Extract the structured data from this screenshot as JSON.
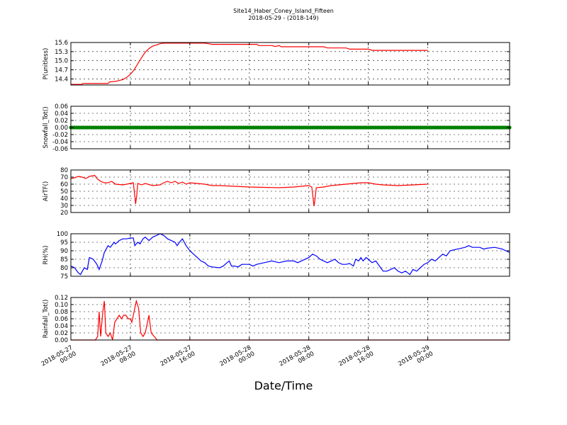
{
  "title_line1": "Site14_Haber_Coney_Island_Fifteen",
  "title_line2": "2018-05-29 - (2018-149)",
  "xlabel": "Date/Time",
  "x_ticks": [
    {
      "t": 0,
      "line1": "2018-05-27",
      "line2": "00:00"
    },
    {
      "t": 8,
      "line1": "2018-05-27",
      "line2": "08:00"
    },
    {
      "t": 16,
      "line1": "2018-05-27",
      "line2": "16:00"
    },
    {
      "t": 24,
      "line1": "2018-05-28",
      "line2": "00:00"
    },
    {
      "t": 32,
      "line1": "2018-05-28",
      "line2": "08:00"
    },
    {
      "t": 40,
      "line1": "2018-05-28",
      "line2": "16:00"
    },
    {
      "t": 48,
      "line1": "2018-05-29",
      "line2": "00:00"
    }
  ],
  "chart_data": [
    {
      "type": "line",
      "id": "pressure",
      "ylabel": "P(unitless)",
      "color": "#ff0000",
      "ylim": [
        14.2,
        15.6
      ],
      "yticks": [
        14.4,
        14.7,
        15.0,
        15.3,
        15.6
      ],
      "decimals": 1,
      "grid": true,
      "points": [
        [
          0,
          14.22
        ],
        [
          1.5,
          14.22
        ],
        [
          1.6,
          14.25
        ],
        [
          5,
          14.25
        ],
        [
          5.2,
          14.3
        ],
        [
          6,
          14.32
        ],
        [
          7,
          14.38
        ],
        [
          7.5,
          14.45
        ],
        [
          8,
          14.55
        ],
        [
          8.5,
          14.7
        ],
        [
          9,
          14.9
        ],
        [
          9.5,
          15.1
        ],
        [
          10,
          15.28
        ],
        [
          10.5,
          15.4
        ],
        [
          11,
          15.48
        ],
        [
          11.5,
          15.52
        ],
        [
          12,
          15.56
        ],
        [
          12.5,
          15.58
        ],
        [
          18,
          15.58
        ],
        [
          18.5,
          15.56
        ],
        [
          19,
          15.54
        ],
        [
          25,
          15.54
        ],
        [
          25.3,
          15.5
        ],
        [
          27,
          15.5
        ],
        [
          27.5,
          15.47
        ],
        [
          28,
          15.5
        ],
        [
          28.3,
          15.46
        ],
        [
          34,
          15.46
        ],
        [
          34.5,
          15.42
        ],
        [
          37,
          15.42
        ],
        [
          37.5,
          15.38
        ],
        [
          40,
          15.38
        ],
        [
          40.5,
          15.34
        ],
        [
          48,
          15.34
        ]
      ]
    },
    {
      "type": "scatter",
      "id": "snowfall",
      "ylabel": "Snowfall_Tot()",
      "color": "#008000",
      "ylim": [
        -0.06,
        0.06
      ],
      "yticks": [
        -0.06,
        -0.04,
        -0.02,
        0.0,
        0.02,
        0.04,
        0.06
      ],
      "decimals": 2,
      "grid": true,
      "constant_value": 0.0,
      "x_step": 0.25
    },
    {
      "type": "line",
      "id": "airtemp",
      "ylabel": "AirTF()",
      "color": "#ff0000",
      "ylim": [
        20,
        80
      ],
      "yticks": [
        20,
        30,
        40,
        50,
        60,
        70,
        80
      ],
      "decimals": 0,
      "grid": true,
      "points": [
        [
          0,
          68
        ],
        [
          0.5,
          69
        ],
        [
          1,
          71
        ],
        [
          1.5,
          70
        ],
        [
          2,
          68
        ],
        [
          2.5,
          71
        ],
        [
          3,
          72
        ],
        [
          3.2,
          72.5
        ],
        [
          3.5,
          68
        ],
        [
          4,
          64
        ],
        [
          4.5,
          62
        ],
        [
          5,
          62
        ],
        [
          5.5,
          64
        ],
        [
          6,
          60
        ],
        [
          7,
          59
        ],
        [
          7.5,
          60
        ],
        [
          8,
          61
        ],
        [
          8.4,
          62
        ],
        [
          8.6,
          43
        ],
        [
          8.7,
          32
        ],
        [
          8.85,
          43
        ],
        [
          9,
          61
        ],
        [
          9.5,
          59
        ],
        [
          10,
          61
        ],
        [
          11,
          58
        ],
        [
          12,
          59
        ],
        [
          12.5,
          62
        ],
        [
          13,
          64
        ],
        [
          13.5,
          62
        ],
        [
          14,
          64
        ],
        [
          14.5,
          61
        ],
        [
          15,
          63
        ],
        [
          15.5,
          60
        ],
        [
          16,
          62
        ],
        [
          17,
          61
        ],
        [
          18,
          60
        ],
        [
          19,
          58
        ],
        [
          20,
          58
        ],
        [
          22,
          57
        ],
        [
          24,
          56
        ],
        [
          28,
          55
        ],
        [
          30,
          56
        ],
        [
          31,
          57
        ],
        [
          32,
          58
        ],
        [
          32.4,
          56
        ],
        [
          32.6,
          38
        ],
        [
          32.7,
          29
        ],
        [
          32.85,
          40
        ],
        [
          33,
          55
        ],
        [
          34,
          56
        ],
        [
          35,
          58
        ],
        [
          36,
          59
        ],
        [
          37,
          60
        ],
        [
          38,
          61
        ],
        [
          39,
          62
        ],
        [
          40,
          62
        ],
        [
          41,
          60
        ],
        [
          42,
          59
        ],
        [
          44,
          58
        ],
        [
          46,
          59
        ],
        [
          48,
          60
        ]
      ]
    },
    {
      "type": "line",
      "id": "rh",
      "ylabel": "RH(%)",
      "color": "#0000ff",
      "ylim": [
        75,
        100
      ],
      "yticks": [
        75,
        80,
        85,
        90,
        95,
        100
      ],
      "decimals": 0,
      "grid": true,
      "points": [
        [
          0,
          81
        ],
        [
          0.5,
          80
        ],
        [
          1,
          77
        ],
        [
          1.3,
          76
        ],
        [
          1.8,
          80
        ],
        [
          2.2,
          79
        ],
        [
          2.5,
          86
        ],
        [
          3,
          85
        ],
        [
          3.5,
          82
        ],
        [
          3.8,
          79
        ],
        [
          4.2,
          84
        ],
        [
          4.5,
          89
        ],
        [
          5,
          93
        ],
        [
          5.3,
          92
        ],
        [
          5.8,
          95
        ],
        [
          6,
          94
        ],
        [
          6.5,
          96
        ],
        [
          7,
          97
        ],
        [
          7.5,
          97
        ],
        [
          8,
          97.5
        ],
        [
          8.4,
          97.5
        ],
        [
          8.6,
          93
        ],
        [
          8.8,
          94
        ],
        [
          9,
          95
        ],
        [
          9.3,
          94
        ],
        [
          9.7,
          97
        ],
        [
          10,
          98
        ],
        [
          10.5,
          96
        ],
        [
          11,
          98
        ],
        [
          11.5,
          99
        ],
        [
          12,
          100
        ],
        [
          12.5,
          99
        ],
        [
          13,
          97
        ],
        [
          13.5,
          96
        ],
        [
          14,
          95
        ],
        [
          14.3,
          93
        ],
        [
          14.6,
          95
        ],
        [
          15,
          97
        ],
        [
          15.5,
          93
        ],
        [
          16,
          90
        ],
        [
          16.5,
          88
        ],
        [
          17,
          86
        ],
        [
          17.5,
          84
        ],
        [
          18,
          83
        ],
        [
          18.5,
          81
        ],
        [
          19,
          80.5
        ],
        [
          20,
          80
        ],
        [
          20.5,
          81
        ],
        [
          21,
          83
        ],
        [
          21.3,
          84
        ],
        [
          21.6,
          81
        ],
        [
          22,
          81
        ],
        [
          22.5,
          80.5
        ],
        [
          23,
          82
        ],
        [
          24,
          82
        ],
        [
          24.5,
          81
        ],
        [
          25,
          82
        ],
        [
          26,
          83
        ],
        [
          27,
          84
        ],
        [
          28,
          83
        ],
        [
          29,
          84
        ],
        [
          30,
          84
        ],
        [
          30.5,
          83
        ],
        [
          31,
          84
        ],
        [
          32,
          86
        ],
        [
          32.5,
          88
        ],
        [
          33,
          87
        ],
        [
          33.5,
          85
        ],
        [
          34,
          84
        ],
        [
          34.5,
          83
        ],
        [
          35,
          84
        ],
        [
          35.5,
          85
        ],
        [
          36,
          83
        ],
        [
          36.5,
          82
        ],
        [
          37,
          82
        ],
        [
          37.5,
          82.5
        ],
        [
          38,
          81
        ],
        [
          38.3,
          85
        ],
        [
          38.7,
          84
        ],
        [
          39,
          86
        ],
        [
          39.3,
          84
        ],
        [
          39.7,
          86
        ],
        [
          40,
          85
        ],
        [
          40.5,
          83
        ],
        [
          41,
          84
        ],
        [
          41.5,
          81
        ],
        [
          42,
          78
        ],
        [
          42.5,
          78
        ],
        [
          43,
          79
        ],
        [
          43.5,
          80
        ],
        [
          44,
          78
        ],
        [
          44.5,
          77
        ],
        [
          45,
          78
        ],
        [
          45.3,
          77
        ],
        [
          45.6,
          76
        ],
        [
          46,
          79
        ],
        [
          46.5,
          78
        ],
        [
          47,
          80
        ],
        [
          47.5,
          82
        ],
        [
          48,
          83
        ],
        [
          48.5,
          85
        ],
        [
          49,
          84
        ],
        [
          49.5,
          86
        ],
        [
          50,
          88
        ],
        [
          50.5,
          87
        ],
        [
          51,
          90
        ],
        [
          52,
          91
        ],
        [
          52.5,
          91.5
        ],
        [
          53,
          92
        ],
        [
          53.5,
          93
        ],
        [
          54,
          92
        ],
        [
          55,
          92
        ],
        [
          55.5,
          91
        ],
        [
          56,
          91.5
        ],
        [
          57,
          92
        ],
        [
          58,
          91
        ],
        [
          58.5,
          90
        ],
        [
          59,
          89
        ]
      ]
    },
    {
      "type": "line",
      "id": "rainfall",
      "ylabel": "Rainfall_Tot()",
      "color": "#ff0000",
      "ylim": [
        0.0,
        0.12
      ],
      "yticks": [
        0.0,
        0.02,
        0.04,
        0.06,
        0.08,
        0.1,
        0.12
      ],
      "decimals": 2,
      "grid": true,
      "points": [
        [
          0,
          0
        ],
        [
          3.3,
          0
        ],
        [
          3.6,
          0.01
        ],
        [
          3.8,
          0.08
        ],
        [
          4.0,
          0.01
        ],
        [
          4.3,
          0.08
        ],
        [
          4.5,
          0.11
        ],
        [
          4.7,
          0.02
        ],
        [
          5,
          0.01
        ],
        [
          5.3,
          0.02
        ],
        [
          5.6,
          0.0
        ],
        [
          5.9,
          0.05
        ],
        [
          6.2,
          0.06
        ],
        [
          6.5,
          0.07
        ],
        [
          6.8,
          0.06
        ],
        [
          7.1,
          0.07
        ],
        [
          7.4,
          0.07
        ],
        [
          7.7,
          0.06
        ],
        [
          8,
          0.06
        ],
        [
          8.2,
          0.05
        ],
        [
          8.5,
          0.08
        ],
        [
          8.8,
          0.11
        ],
        [
          9.1,
          0.09
        ],
        [
          9.4,
          0.02
        ],
        [
          9.7,
          0.01
        ],
        [
          10,
          0.02
        ],
        [
          10.3,
          0.05
        ],
        [
          10.5,
          0.07
        ],
        [
          10.8,
          0.02
        ],
        [
          11.2,
          0.01
        ],
        [
          11.6,
          0.0
        ],
        [
          14,
          0
        ],
        [
          59,
          0
        ]
      ]
    }
  ]
}
